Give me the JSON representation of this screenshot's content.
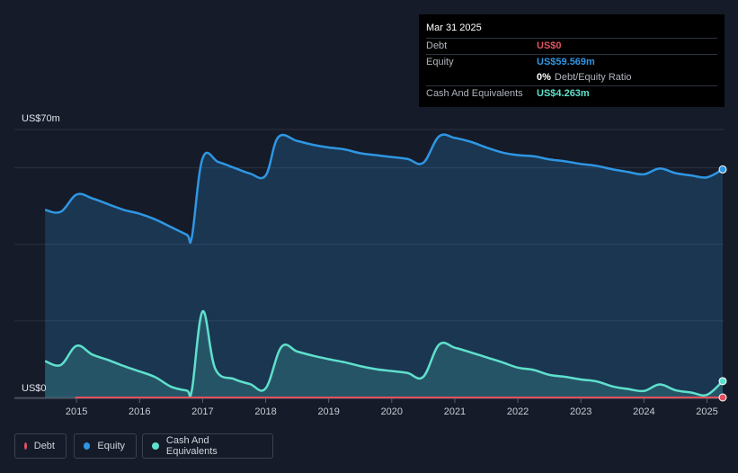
{
  "tooltip": {
    "date": "Mar 31 2025",
    "debt_label": "Debt",
    "debt_value": "US$0",
    "equity_label": "Equity",
    "equity_value": "US$59.569m",
    "ratio_value": "0%",
    "ratio_label": "Debt/Equity Ratio",
    "cash_label": "Cash And Equivalents",
    "cash_value": "US$4.263m"
  },
  "colors": {
    "debt": "#e05260",
    "equity": "#2f96e3",
    "cash": "#5fe0cc",
    "background": "#151b28"
  },
  "legend": [
    {
      "name": "Debt",
      "color": "#e05260"
    },
    {
      "name": "Equity",
      "color": "#2f96e3"
    },
    {
      "name": "Cash And Equivalents",
      "color": "#5fe0cc"
    }
  ],
  "chart_data": {
    "type": "area",
    "y_top_label": "US$70m",
    "y_bottom_label": "US$0",
    "ylim": [
      0,
      70
    ],
    "xlim": [
      2014.47,
      2025.25
    ],
    "x_ticks": [
      "2015",
      "2016",
      "2017",
      "2018",
      "2019",
      "2020",
      "2021",
      "2022",
      "2023",
      "2024",
      "2025"
    ],
    "grid": true,
    "series": [
      {
        "name": "Equity",
        "points": [
          [
            2014.5,
            49.0
          ],
          [
            2014.75,
            48.5
          ],
          [
            2015.0,
            53.0
          ],
          [
            2015.25,
            52.0
          ],
          [
            2015.5,
            50.5
          ],
          [
            2015.75,
            49.0
          ],
          [
            2016.0,
            48.0
          ],
          [
            2016.25,
            46.5
          ],
          [
            2016.5,
            44.5
          ],
          [
            2016.75,
            42.5
          ],
          [
            2016.83,
            42.0
          ],
          [
            2017.0,
            62.5
          ],
          [
            2017.25,
            61.5
          ],
          [
            2017.5,
            60.0
          ],
          [
            2017.75,
            58.5
          ],
          [
            2018.0,
            58.0
          ],
          [
            2018.2,
            68.0
          ],
          [
            2018.5,
            67.0
          ],
          [
            2018.75,
            66.0
          ],
          [
            2019.0,
            65.3
          ],
          [
            2019.25,
            64.8
          ],
          [
            2019.5,
            63.8
          ],
          [
            2019.75,
            63.3
          ],
          [
            2020.0,
            62.8
          ],
          [
            2020.25,
            62.3
          ],
          [
            2020.5,
            61.3
          ],
          [
            2020.75,
            68.2
          ],
          [
            2021.0,
            67.8
          ],
          [
            2021.25,
            66.8
          ],
          [
            2021.5,
            65.3
          ],
          [
            2021.75,
            64.0
          ],
          [
            2022.0,
            63.3
          ],
          [
            2022.25,
            63.0
          ],
          [
            2022.5,
            62.2
          ],
          [
            2022.75,
            61.7
          ],
          [
            2023.0,
            61.0
          ],
          [
            2023.25,
            60.5
          ],
          [
            2023.5,
            59.6
          ],
          [
            2023.75,
            58.9
          ],
          [
            2024.0,
            58.3
          ],
          [
            2024.25,
            59.8
          ],
          [
            2024.5,
            58.6
          ],
          [
            2024.75,
            58.0
          ],
          [
            2025.0,
            57.5
          ],
          [
            2025.25,
            59.569
          ]
        ]
      },
      {
        "name": "Cash And Equivalents",
        "points": [
          [
            2014.5,
            9.5
          ],
          [
            2014.75,
            8.5
          ],
          [
            2015.0,
            13.5
          ],
          [
            2015.25,
            11.2
          ],
          [
            2015.5,
            9.8
          ],
          [
            2015.75,
            8.2
          ],
          [
            2016.0,
            6.8
          ],
          [
            2016.25,
            5.3
          ],
          [
            2016.5,
            2.8
          ],
          [
            2016.75,
            1.8
          ],
          [
            2016.83,
            2.0
          ],
          [
            2017.0,
            22.5
          ],
          [
            2017.2,
            7.5
          ],
          [
            2017.5,
            4.8
          ],
          [
            2017.75,
            3.5
          ],
          [
            2018.0,
            2.4
          ],
          [
            2018.25,
            13.2
          ],
          [
            2018.5,
            12.0
          ],
          [
            2018.75,
            10.9
          ],
          [
            2019.0,
            10.0
          ],
          [
            2019.25,
            9.2
          ],
          [
            2019.5,
            8.2
          ],
          [
            2019.75,
            7.4
          ],
          [
            2020.0,
            6.9
          ],
          [
            2020.25,
            6.4
          ],
          [
            2020.5,
            5.4
          ],
          [
            2020.75,
            13.8
          ],
          [
            2021.0,
            13.0
          ],
          [
            2021.25,
            11.8
          ],
          [
            2021.5,
            10.5
          ],
          [
            2021.75,
            9.2
          ],
          [
            2022.0,
            7.8
          ],
          [
            2022.25,
            7.2
          ],
          [
            2022.5,
            5.9
          ],
          [
            2022.75,
            5.4
          ],
          [
            2023.0,
            4.7
          ],
          [
            2023.25,
            4.2
          ],
          [
            2023.5,
            2.9
          ],
          [
            2023.75,
            2.2
          ],
          [
            2024.0,
            1.7
          ],
          [
            2024.25,
            3.4
          ],
          [
            2024.5,
            1.9
          ],
          [
            2024.75,
            1.3
          ],
          [
            2025.0,
            0.7
          ],
          [
            2025.25,
            4.263
          ]
        ]
      },
      {
        "name": "Debt",
        "points": [
          [
            2014.75,
            0
          ],
          [
            2025.25,
            0
          ]
        ]
      }
    ]
  }
}
